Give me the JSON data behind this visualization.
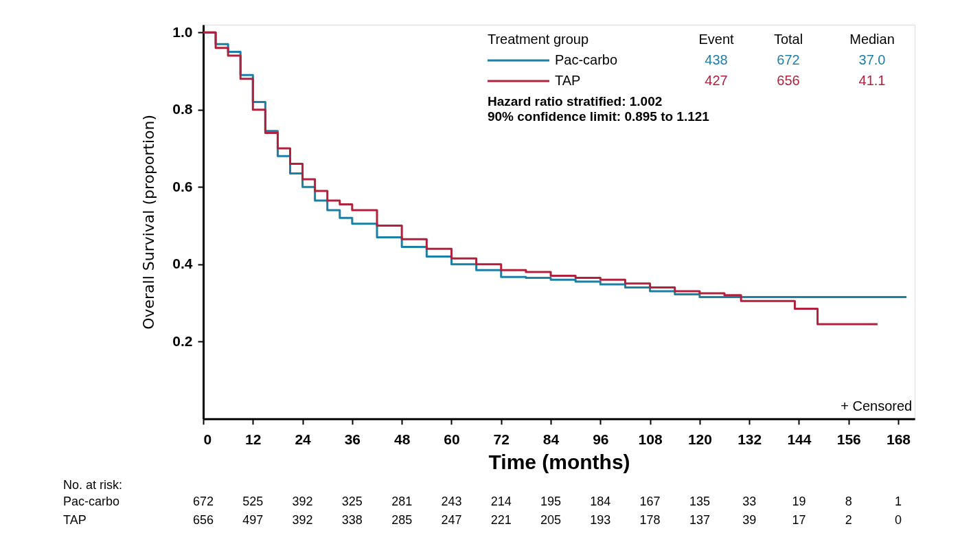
{
  "chart_data": {
    "type": "step",
    "xlabel": "Time (months)",
    "ylabel": "Overall Survival (proportion)",
    "xlim": [
      0,
      172
    ],
    "ylim": [
      0,
      1.02
    ],
    "xticks": [
      0,
      12,
      24,
      36,
      48,
      60,
      72,
      84,
      96,
      108,
      120,
      132,
      144,
      156,
      168
    ],
    "yticks": [
      {
        "value": 0.2,
        "label": "0.2"
      },
      {
        "value": 0.4,
        "label": "0.4"
      },
      {
        "value": 0.6,
        "label": "0.6"
      },
      {
        "value": 0.8,
        "label": "0.8"
      },
      {
        "value": 1.0,
        "label": "1.0"
      }
    ],
    "legend": "top right",
    "series": [
      {
        "name": "Pac-carbo",
        "color": "#1b7fa6",
        "x": [
          0,
          3,
          6,
          9,
          12,
          15,
          18,
          21,
          24,
          27,
          30,
          33,
          36,
          42,
          48,
          54,
          60,
          66,
          72,
          78,
          84,
          90,
          96,
          102,
          108,
          114,
          120,
          126,
          132,
          150,
          170
        ],
        "values": [
          1.0,
          0.97,
          0.95,
          0.89,
          0.82,
          0.745,
          0.68,
          0.635,
          0.6,
          0.565,
          0.54,
          0.52,
          0.505,
          0.47,
          0.445,
          0.42,
          0.4,
          0.385,
          0.367,
          0.365,
          0.36,
          0.355,
          0.348,
          0.34,
          0.33,
          0.322,
          0.315,
          0.315,
          0.315,
          0.315,
          0.315
        ]
      },
      {
        "name": "TAP",
        "color": "#b3203c",
        "x": [
          0,
          3,
          6,
          9,
          12,
          15,
          18,
          21,
          24,
          27,
          30,
          33,
          36,
          42,
          48,
          54,
          60,
          66,
          72,
          78,
          84,
          90,
          96,
          102,
          108,
          114,
          120,
          126,
          130,
          140,
          143,
          148.5,
          163
        ],
        "values": [
          1.0,
          0.96,
          0.94,
          0.88,
          0.8,
          0.74,
          0.7,
          0.66,
          0.62,
          0.59,
          0.565,
          0.555,
          0.54,
          0.5,
          0.465,
          0.44,
          0.415,
          0.4,
          0.385,
          0.38,
          0.37,
          0.365,
          0.36,
          0.35,
          0.34,
          0.33,
          0.325,
          0.32,
          0.305,
          0.305,
          0.285,
          0.245,
          0.245
        ]
      }
    ],
    "annotations": [
      "Treatment group",
      "Event",
      "Total",
      "Median",
      "438",
      "672",
      "37.0",
      "427",
      "656",
      "41.1",
      "Hazard ratio stratified: 1.002",
      "90% confidence limit: 0.895 to 1.121",
      "+ Censored",
      "No. at risk:",
      "672 525 392 325 281 243 214 195 184 167 135 33 19 8 1",
      "656 497 392 338 285 247 221 205 193 178 137 39 17 2 0"
    ]
  }
}
